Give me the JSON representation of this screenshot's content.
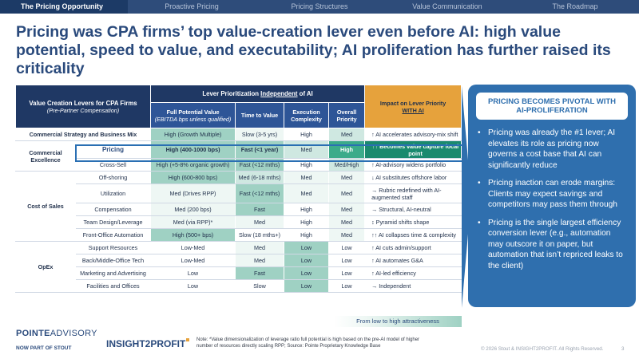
{
  "nav": {
    "tabs": [
      "The Pricing Opportunity",
      "Proactive Pricing",
      "Pricing Structures",
      "Value Communication",
      "The Roadmap"
    ]
  },
  "title": "Pricing was CPA firms’ top value-creation lever even before AI: high value potential, speed to value, and executability; AI proliferation has further raised its criticality",
  "table": {
    "lever_header": "Value Creation Levers for CPA Firms",
    "lever_header_sub": "(Pre-Partner Compensation)",
    "prio_header_pre": "Lever Prioritization ",
    "prio_header_u": "Independent",
    "prio_header_post": " of AI",
    "col_potential": "Full Potential  Value",
    "col_potential_sub": "(EBITDA bps unless qualified)",
    "col_time": "Time to Value",
    "col_complexity": "Execution Complexity",
    "col_priority": "Overall Priority",
    "impact_header": "Impact on Lever Priority",
    "impact_header_u": "WITH AI",
    "rows": [
      {
        "cat": "Commercial Strategy and Business Mix",
        "lever": "",
        "potential": "High (Growth Multiple)",
        "time": "Slow (3-5 yrs)",
        "complexity": "High",
        "priority": "Med",
        "impact": "↑ AI accelerates advisory-mix shift"
      },
      {
        "cat": "Commercial Excellence",
        "lever": "Pricing",
        "potential": "High (400-1000 bps)",
        "time": "Fast (<1 year)",
        "complexity": "Med",
        "priority": "High",
        "impact": "↑↑ Becomes value capture focal point"
      },
      {
        "cat": "",
        "lever": "Cross-Sell",
        "potential": "High (+5-8% organic growth)",
        "time": "Fast (<12 mths)",
        "complexity": "High",
        "priority": "Med/High",
        "impact": "↑ AI-advisory widens portfolio"
      },
      {
        "cat": "Cost of Sales",
        "lever": "Off-shoring",
        "potential": "High (600-800 bps)",
        "time": "Med (6-18 mths)",
        "complexity": "Med",
        "priority": "Med",
        "impact": "↓ AI substitutes offshore labor"
      },
      {
        "cat": "",
        "lever": "Utilization",
        "potential": "Med (Drives RPP)",
        "time": "Fast (<12 mths)",
        "complexity": "Med",
        "priority": "Med",
        "impact": "→ Rubric redefined with AI-augmented staff"
      },
      {
        "cat": "",
        "lever": "Compensation",
        "potential": "Med (200 bps)",
        "time": "Fast",
        "complexity": "High",
        "priority": "Med",
        "impact": "→ Structural, AI-neutral"
      },
      {
        "cat": "",
        "lever": "Team Design/Leverage",
        "potential": "Med (via RPP)*",
        "time": "Med",
        "complexity": "High",
        "priority": "Med",
        "impact": "↕ Pyramid shifts shape"
      },
      {
        "cat": "",
        "lever": "Front-Office Automation",
        "potential": "High (500+ bps)",
        "time": "Slow (18 mths+)",
        "complexity": "High",
        "priority": "Med",
        "impact": "↑↑ AI collapses time & complexity"
      },
      {
        "cat": "OpEx",
        "lever": "Support Resources",
        "potential": "Low-Med",
        "time": "Med",
        "complexity": "Low",
        "priority": "Low",
        "impact": "↑ AI cuts admin/support"
      },
      {
        "cat": "",
        "lever": "Back/Middle-Office Tech",
        "potential": "Low-Med",
        "time": "Med",
        "complexity": "Low",
        "priority": "Low",
        "impact": "↑ AI automates G&A"
      },
      {
        "cat": "",
        "lever": "Marketing and Advertising",
        "potential": "Low",
        "time": "Fast",
        "complexity": "Low",
        "priority": "Low",
        "impact": "↑ AI-led efficiency"
      },
      {
        "cat": "",
        "lever": "Facilities and Offices",
        "potential": "Low",
        "time": "Slow",
        "complexity": "Low",
        "priority": "Low",
        "impact": "→ Independent"
      }
    ]
  },
  "panel": {
    "heading": "PRICING BECOMES PIVOTAL WITH AI-PROLIFERATION",
    "bullets": [
      "Pricing was already the #1 lever; AI elevates its role as pricing now governs a cost base that AI can significantly reduce",
      "Pricing inaction can erode margins: Clients may expect savings and competitors may pass them through",
      "Pricing is the single largest efficiency conversion lever (e.g., automation may outscore it on paper, but automation that isn’t repriced leaks to the client)"
    ]
  },
  "legend": "From low to high attractiveness",
  "footer": {
    "logo1_a": "POINTE",
    "logo1_b": "ADVISORY",
    "logo1_sub": "NOW PART OF",
    "logo1_sub_b": "STOUT",
    "logo2": "INSIGHT2PROFIT",
    "note": "Note: *Value dimensionalization of leverage ratio full potential is high based on the pre-AI model of higher number of resources directly scaling RPP; Source: Pointe Proprietary Knowledge Base",
    "copyright": "© 2026 Stout & INSIGHT2PROFIT. All Rights Reserved.",
    "page": "3"
  },
  "colors": {
    "nav": "#2e4c7a",
    "header": "#1f3864",
    "accent": "#e6a23c",
    "panel": "#2f6fae",
    "high": "#9fd1c3",
    "med": "#cfe8e1"
  }
}
